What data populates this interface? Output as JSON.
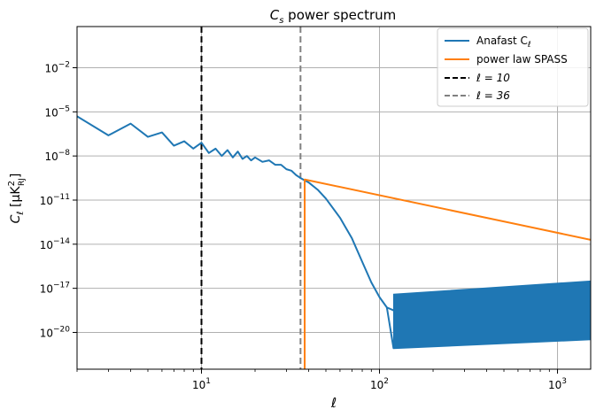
{
  "chart_data": {
    "type": "line",
    "title_main": "C",
    "title_sub": "s",
    "title_rest": " power spectrum",
    "xlabel": "ℓ",
    "ylabel_main": "C",
    "ylabel_sub": "ℓ",
    "ylabel_unit": " [μK",
    "ylabel_unit_sup": "2",
    "ylabel_unit_sub": "RJ",
    "ylabel_end": "]",
    "x_scale": "log",
    "y_scale": "log",
    "xlim": [
      2,
      1536
    ],
    "ylim_exponent": [
      -22.5,
      0.8
    ],
    "grid": true,
    "legend_position": "upper right",
    "x_ticks": [
      {
        "value": 10,
        "base": "10",
        "exp": "1"
      },
      {
        "value": 100,
        "base": "10",
        "exp": "2"
      },
      {
        "value": 1000,
        "base": "10",
        "exp": "3"
      }
    ],
    "y_ticks": [
      {
        "exponent": -2,
        "base": "10",
        "exp": "−2"
      },
      {
        "exponent": -5,
        "base": "10",
        "exp": "−5"
      },
      {
        "exponent": -8,
        "base": "10",
        "exp": "−8"
      },
      {
        "exponent": -11,
        "base": "10",
        "exp": "−11"
      },
      {
        "exponent": -14,
        "base": "10",
        "exp": "−14"
      },
      {
        "exponent": -17,
        "base": "10",
        "exp": "−17"
      },
      {
        "exponent": -20,
        "base": "10",
        "exp": "−20"
      }
    ],
    "series": [
      {
        "name": "Anafast C",
        "name_sub": "ℓ",
        "color": "#1f77b4",
        "log10_points": [
          [
            2,
            -5.3
          ],
          [
            3,
            -6.6
          ],
          [
            4,
            -5.8
          ],
          [
            5,
            -6.7
          ],
          [
            6,
            -6.4
          ],
          [
            7,
            -7.3
          ],
          [
            8,
            -7.0
          ],
          [
            9,
            -7.5
          ],
          [
            10,
            -7.1
          ],
          [
            11,
            -7.8
          ],
          [
            12,
            -7.5
          ],
          [
            13,
            -8.0
          ],
          [
            14,
            -7.6
          ],
          [
            15,
            -8.1
          ],
          [
            16,
            -7.7
          ],
          [
            17,
            -8.2
          ],
          [
            18,
            -8.0
          ],
          [
            19,
            -8.3
          ],
          [
            20,
            -8.1
          ],
          [
            22,
            -8.4
          ],
          [
            24,
            -8.3
          ],
          [
            26,
            -8.6
          ],
          [
            28,
            -8.6
          ],
          [
            30,
            -8.9
          ],
          [
            32,
            -9.0
          ],
          [
            34,
            -9.3
          ],
          [
            36,
            -9.5
          ],
          [
            40,
            -9.8
          ],
          [
            45,
            -10.3
          ],
          [
            50,
            -10.9
          ],
          [
            60,
            -12.2
          ],
          [
            70,
            -13.6
          ],
          [
            80,
            -15.2
          ],
          [
            90,
            -16.6
          ],
          [
            100,
            -17.6
          ],
          [
            110,
            -18.3
          ],
          [
            120,
            -18.5
          ],
          [
            1536,
            -18.5
          ]
        ],
        "noise_band_log10": {
          "x_start": 120,
          "x_end": 1536,
          "lower": [
            -21.1,
            -20.5
          ],
          "upper": [
            -17.4,
            -16.5
          ]
        }
      },
      {
        "name": "power law SPASS",
        "color": "#ff7f0e",
        "log10_points": [
          [
            38,
            -22.5
          ],
          [
            38,
            -9.6
          ],
          [
            1536,
            -13.7
          ]
        ]
      },
      {
        "name": "ℓ = 10",
        "color": "#000000",
        "style": "dashed",
        "vline_x": 10
      },
      {
        "name": "ℓ = 36",
        "color": "#808080",
        "style": "dashed",
        "vline_x": 36
      }
    ]
  }
}
